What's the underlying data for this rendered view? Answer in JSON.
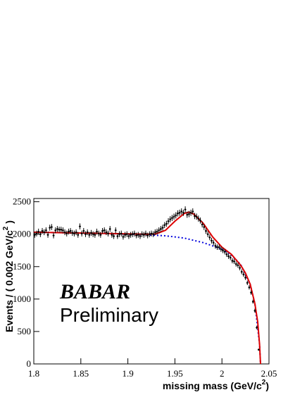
{
  "chart_data": {
    "type": "scatter",
    "x_label": {
      "text": "missing mass (GeV/c",
      "sup": "2",
      "end": ")"
    },
    "y_label": {
      "text": "Events / ( 0.002 GeV/c",
      "sup": "2",
      "end": " )"
    },
    "annotations": [
      "BABAR",
      "Preliminary"
    ],
    "xlim": [
      1.8,
      2.05
    ],
    "ylim": [
      0,
      2550
    ],
    "xticks": [
      1.8,
      1.85,
      1.9,
      1.95,
      2,
      2.05
    ],
    "yticks": [
      0,
      500,
      1000,
      1500,
      2000,
      2500
    ],
    "data": {
      "color": "#000000",
      "x": [
        1.801,
        1.803,
        1.805,
        1.807,
        1.809,
        1.811,
        1.813,
        1.815,
        1.817,
        1.819,
        1.821,
        1.823,
        1.825,
        1.827,
        1.829,
        1.831,
        1.833,
        1.835,
        1.837,
        1.839,
        1.841,
        1.843,
        1.845,
        1.847,
        1.849,
        1.851,
        1.853,
        1.855,
        1.857,
        1.859,
        1.861,
        1.863,
        1.865,
        1.867,
        1.869,
        1.871,
        1.873,
        1.875,
        1.877,
        1.879,
        1.881,
        1.883,
        1.885,
        1.887,
        1.889,
        1.891,
        1.893,
        1.895,
        1.897,
        1.899,
        1.901,
        1.903,
        1.905,
        1.907,
        1.909,
        1.911,
        1.913,
        1.915,
        1.917,
        1.919,
        1.921,
        1.923,
        1.925,
        1.927,
        1.929,
        1.931,
        1.933,
        1.935,
        1.937,
        1.939,
        1.941,
        1.943,
        1.945,
        1.947,
        1.949,
        1.951,
        1.953,
        1.955,
        1.957,
        1.959,
        1.961,
        1.963,
        1.965,
        1.967,
        1.969,
        1.971,
        1.973,
        1.975,
        1.977,
        1.979,
        1.981,
        1.983,
        1.985,
        1.987,
        1.989,
        1.991,
        1.993,
        1.995,
        1.997,
        1.999,
        2.001,
        2.003,
        2.005,
        2.007,
        2.009,
        2.011,
        2.013,
        2.015,
        2.017,
        2.019,
        2.021,
        2.023,
        2.025,
        2.027,
        2.029,
        2.031,
        2.033,
        2.035,
        2.037,
        2.039
      ],
      "values": [
        1990,
        2010,
        2040,
        2000,
        2050,
        2030,
        2060,
        1990,
        2100,
        2110,
        1980,
        2060,
        2080,
        2070,
        2070,
        2060,
        2030,
        2010,
        2040,
        2050,
        2020,
        2010,
        2030,
        1990,
        2120,
        2010,
        2050,
        2000,
        2030,
        1990,
        2020,
        2000,
        1990,
        2040,
        2010,
        1990,
        2050,
        2060,
        2030,
        2010,
        2080,
        1990,
        1970,
        2060,
        1970,
        2000,
        2010,
        1960,
        1990,
        2000,
        1970,
        1990,
        2000,
        2010,
        1980,
        1990,
        1970,
        2000,
        1990,
        2010,
        1980,
        2000,
        2010,
        2000,
        2030,
        2040,
        2060,
        2080,
        2100,
        2140,
        2160,
        2200,
        2230,
        2250,
        2270,
        2290,
        2320,
        2330,
        2350,
        2330,
        2380,
        2300,
        2310,
        2330,
        2350,
        2280,
        2270,
        2240,
        2210,
        2150,
        2110,
        2050,
        2000,
        1950,
        1900,
        1870,
        1820,
        1800,
        1800,
        1770,
        1750,
        1730,
        1690,
        1660,
        1640,
        1590,
        1580,
        1540,
        1520,
        1480,
        1420,
        1380,
        1330,
        1250,
        1180,
        1100,
        960,
        820,
        560,
        220
      ],
      "errors": [
        45,
        45,
        45,
        45,
        45,
        45,
        45,
        45,
        46,
        46,
        45,
        45,
        46,
        46,
        46,
        45,
        45,
        45,
        45,
        45,
        45,
        45,
        45,
        45,
        46,
        45,
        45,
        45,
        45,
        45,
        45,
        45,
        45,
        45,
        45,
        45,
        45,
        45,
        45,
        45,
        46,
        45,
        44,
        45,
        44,
        45,
        45,
        44,
        45,
        45,
        44,
        45,
        45,
        45,
        44,
        45,
        44,
        45,
        45,
        45,
        44,
        45,
        45,
        45,
        45,
        45,
        45,
        46,
        46,
        46,
        46,
        47,
        47,
        47,
        48,
        48,
        48,
        48,
        48,
        48,
        49,
        48,
        48,
        48,
        48,
        48,
        48,
        47,
        47,
        46,
        46,
        45,
        45,
        44,
        44,
        43,
        43,
        42,
        42,
        42,
        42,
        42,
        41,
        41,
        40,
        40,
        40,
        39,
        39,
        38,
        38,
        37,
        36,
        35,
        34,
        33,
        31,
        29,
        24,
        15
      ]
    },
    "fit": {
      "color": "#dd0000",
      "x": [
        1.8,
        1.82,
        1.84,
        1.86,
        1.88,
        1.9,
        1.92,
        1.93,
        1.94,
        1.95,
        1.96,
        1.965,
        1.97,
        1.98,
        1.99,
        2.0,
        2.01,
        2.02,
        2.025,
        2.03,
        2.035,
        2.038,
        2.04,
        2.041
      ],
      "values": [
        2030,
        2025,
        2020,
        2015,
        2010,
        2005,
        2000,
        2005,
        2060,
        2200,
        2320,
        2340,
        2310,
        2170,
        1960,
        1800,
        1690,
        1520,
        1400,
        1230,
        930,
        650,
        300,
        0
      ]
    },
    "background": {
      "color": "#0000dd",
      "x": [
        1.8,
        1.84,
        1.88,
        1.92,
        1.94,
        1.96,
        1.98,
        2.0,
        2.01,
        2.02,
        2.03,
        2.035,
        2.04,
        2.041
      ],
      "values": [
        2030,
        2020,
        2010,
        1990,
        1975,
        1940,
        1870,
        1770,
        1680,
        1530,
        1230,
        930,
        300,
        0
      ]
    }
  }
}
